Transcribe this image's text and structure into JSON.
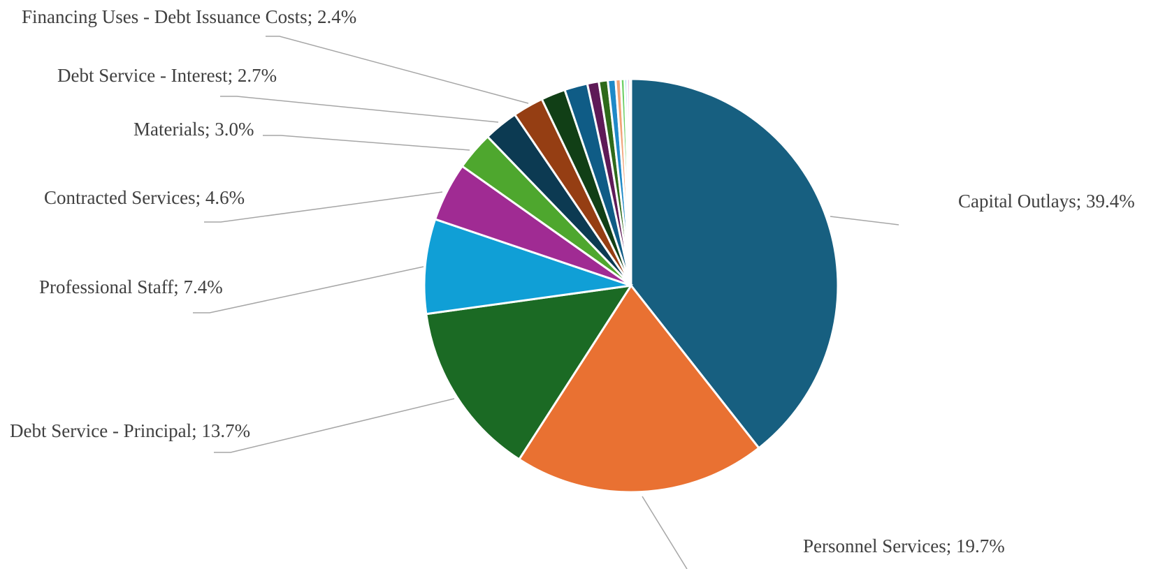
{
  "chart_data": {
    "type": "pie",
    "start_angle_deg": 0,
    "direction": "clockwise",
    "series": [
      {
        "label": "Capital Outlays; 39.4%",
        "category": "Capital Outlays",
        "value": 39.4,
        "color": "#175f80",
        "labeled": true
      },
      {
        "label": "Personnel Services; 19.7%",
        "category": "Personnel Services",
        "value": 19.7,
        "color": "#e97132",
        "labeled": true
      },
      {
        "label": "Debt Service - Principal; 13.7%",
        "category": "Debt Service - Principal",
        "value": 13.7,
        "color": "#1b6a24",
        "labeled": true
      },
      {
        "label": "Professional Staff; 7.4%",
        "category": "Professional Staff",
        "value": 7.4,
        "color": "#109fd6",
        "labeled": true
      },
      {
        "label": "Contracted Services; 4.6%",
        "category": "Contracted Services",
        "value": 4.6,
        "color": "#a02b93",
        "labeled": true
      },
      {
        "label": "Materials; 3.0%",
        "category": "Materials",
        "value": 3.0,
        "color": "#4ea72e",
        "labeled": true
      },
      {
        "label": "Debt Service - Interest; 2.7%",
        "category": "Debt Service - Interest",
        "value": 2.7,
        "color": "#0c3a52",
        "labeled": true
      },
      {
        "label": "Financing Uses - Debt Issuance Costs; 2.4%",
        "category": "Financing Uses - Debt Issuance Costs",
        "value": 2.4,
        "color": "#953e13",
        "labeled": true
      },
      {
        "label": "",
        "value": 1.9,
        "color": "#113f16",
        "labeled": false
      },
      {
        "label": "",
        "value": 1.8,
        "color": "#0f5c86",
        "labeled": false
      },
      {
        "label": "",
        "value": 0.9,
        "color": "#5e1a57",
        "labeled": false
      },
      {
        "label": "",
        "value": 0.7,
        "color": "#2e6a1b",
        "labeled": false
      },
      {
        "label": "",
        "value": 0.6,
        "color": "#1f89c7",
        "labeled": false
      },
      {
        "label": "",
        "value": 0.4,
        "color": "#f1a378",
        "labeled": false
      },
      {
        "label": "",
        "value": 0.3,
        "color": "#6ecf67",
        "labeled": false
      },
      {
        "label": "",
        "value": 0.2,
        "color": "#6fcaf0",
        "labeled": false
      },
      {
        "label": "",
        "value": 0.2,
        "color": "#d983cf",
        "labeled": false
      },
      {
        "label": "",
        "value": 0.1,
        "color": "#94d982",
        "labeled": false
      }
    ]
  }
}
